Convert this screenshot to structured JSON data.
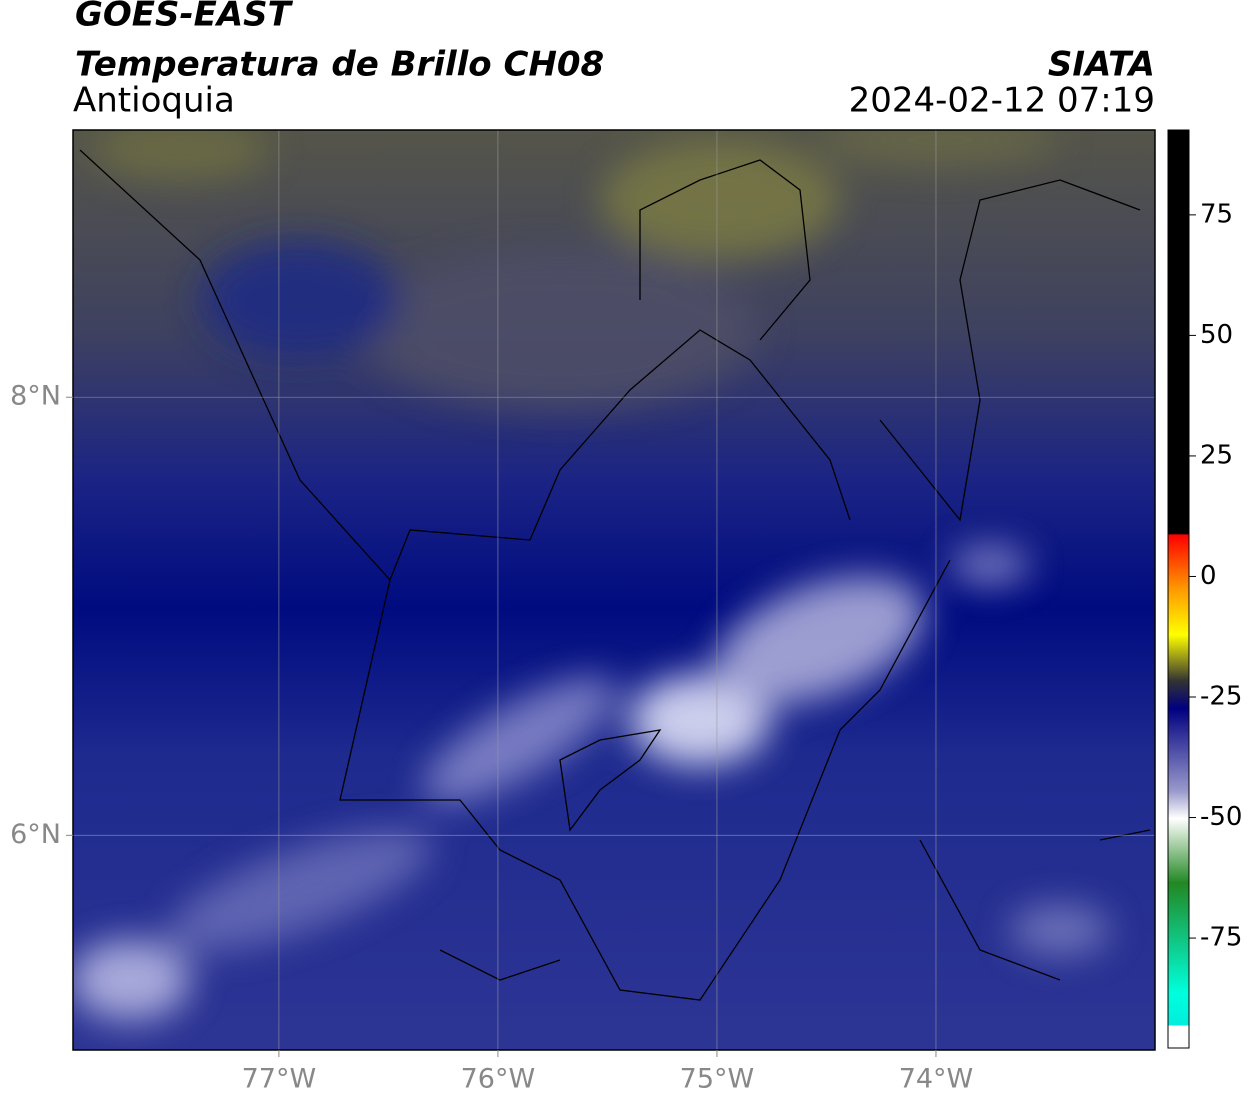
{
  "header": {
    "title": "GOES-EAST",
    "subtitle": "Temperatura de Brillo CH08",
    "region": "Antioquia",
    "source": "SIATA",
    "timestamp": "2024-02-12 07:19"
  },
  "map": {
    "lonlim": [
      -77.94,
      -73.0
    ],
    "latlim": [
      5.02,
      9.22
    ],
    "lon_ticks": [
      {
        "value": -77,
        "label": "77°W"
      },
      {
        "value": -76,
        "label": "76°W"
      },
      {
        "value": -75,
        "label": "75°W"
      },
      {
        "value": -74,
        "label": "74°W"
      }
    ],
    "lat_ticks": [
      {
        "value": 8,
        "label": "8°N"
      },
      {
        "value": 6,
        "label": "6°N"
      }
    ],
    "grid": true
  },
  "colorbar": {
    "lim": [
      -97.8,
      92.6
    ],
    "ticks": [
      75,
      50,
      25,
      0,
      -25,
      -50,
      -75
    ]
  }
}
